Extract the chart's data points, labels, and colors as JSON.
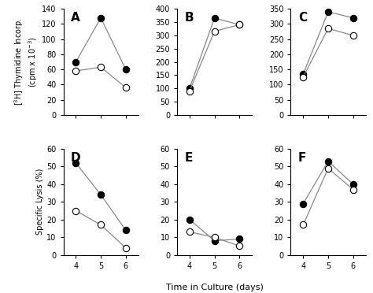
{
  "x": [
    4,
    5,
    6
  ],
  "panels_top": [
    {
      "label": "A",
      "filled": [
        70,
        128,
        60
      ],
      "open": [
        58,
        63,
        36
      ],
      "ylim": [
        0,
        140
      ],
      "yticks": [
        0,
        20,
        40,
        60,
        80,
        100,
        120,
        140
      ]
    },
    {
      "label": "B",
      "filled": [
        100,
        365,
        340
      ],
      "open": [
        90,
        315,
        340
      ],
      "ylim": [
        0,
        400
      ],
      "yticks": [
        0,
        50,
        100,
        150,
        200,
        250,
        300,
        350,
        400
      ]
    },
    {
      "label": "C",
      "filled": [
        135,
        340,
        320
      ],
      "open": [
        125,
        285,
        262
      ],
      "ylim": [
        0,
        350
      ],
      "yticks": [
        0,
        50,
        100,
        150,
        200,
        250,
        300,
        350
      ]
    }
  ],
  "panels_bottom": [
    {
      "label": "D",
      "filled": [
        52,
        34,
        14
      ],
      "open": [
        25,
        17,
        4
      ],
      "ylim": [
        0,
        60
      ],
      "yticks": [
        0,
        10,
        20,
        30,
        40,
        50,
        60
      ]
    },
    {
      "label": "E",
      "filled": [
        20,
        8,
        9
      ],
      "open": [
        13,
        10,
        5
      ],
      "ylim": [
        0,
        60
      ],
      "yticks": [
        0,
        10,
        20,
        30,
        40,
        50,
        60
      ]
    },
    {
      "label": "F",
      "filled": [
        29,
        53,
        40
      ],
      "open": [
        17,
        49,
        37
      ],
      "ylim": [
        0,
        60
      ],
      "yticks": [
        0,
        10,
        20,
        30,
        40,
        50,
        60
      ]
    }
  ],
  "ylabel_top": "$[^3$H$]$ Thymidine Incorp.\n(cpm x $10^{-3}$)",
  "ylabel_bottom": "Specific Lysis (%)",
  "xlabel": "Time in Culture (days)",
  "line_color": "#888888",
  "marker_size": 6,
  "label_fontsize": 11,
  "tick_fontsize": 7,
  "ylabel_fontsize": 7,
  "xlabel_fontsize": 8
}
